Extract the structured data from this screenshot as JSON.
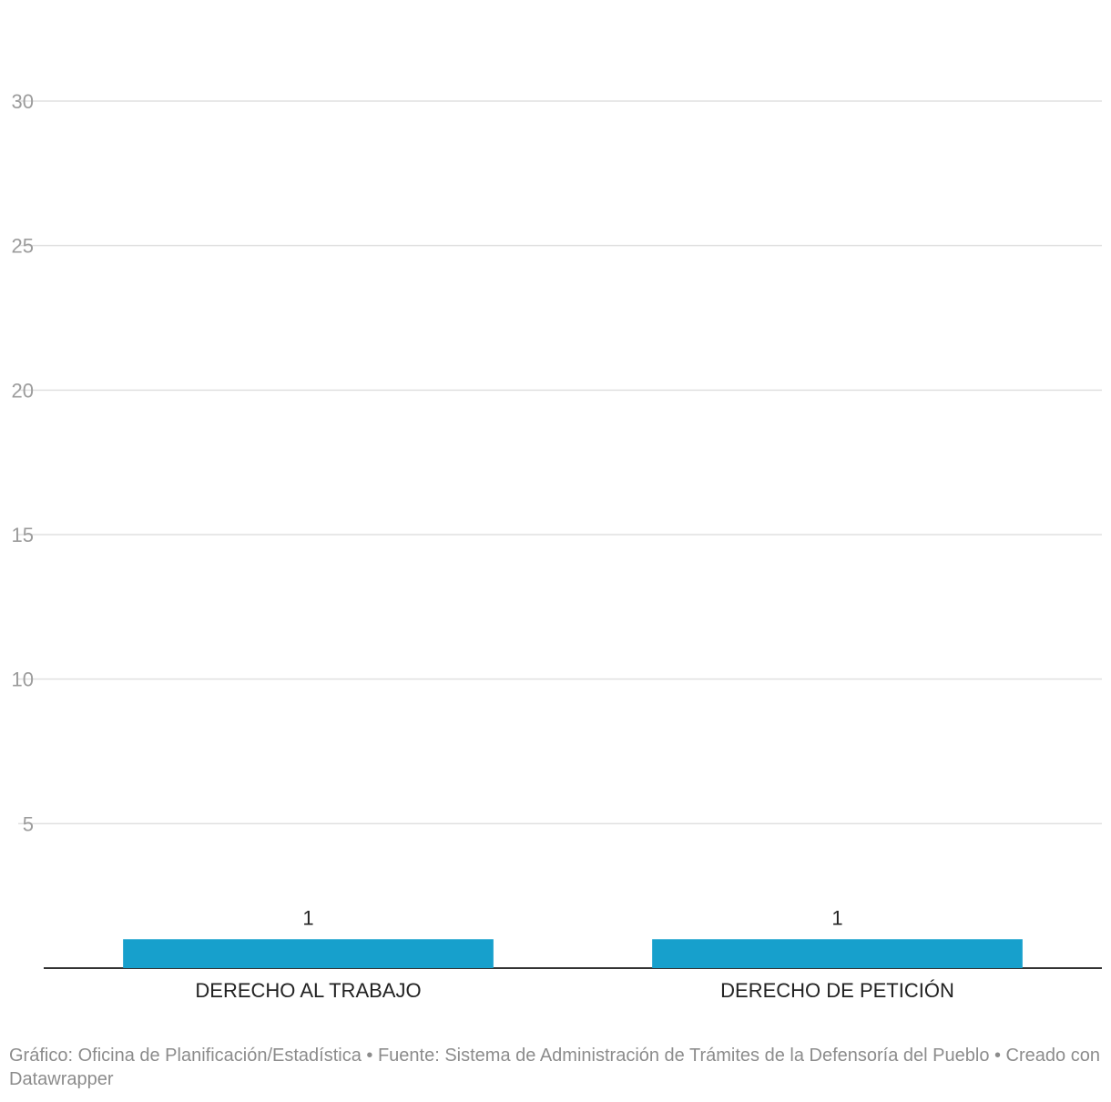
{
  "chart_data": {
    "type": "bar",
    "categories": [
      "DERECHO AL TRABAJO",
      "DERECHO DE PETICIÓN"
    ],
    "values": [
      1,
      1
    ],
    "data_labels": [
      "1",
      "1"
    ],
    "ylim": [
      0,
      30
    ],
    "y_ticks": [
      5,
      10,
      15,
      20,
      25,
      30
    ],
    "y_tick_labels": [
      "5",
      "10",
      "15",
      "20",
      "25",
      "30"
    ],
    "grid": true,
    "bar_color": "#17a0cc",
    "xlabel": "",
    "ylabel": ""
  },
  "footer": {
    "text": "Gráfico: Oficina de Planificación/Estadística • Fuente: Sistema de Administración de Trámites de la Defensoría del Pueblo • Creado con Datawrapper"
  }
}
